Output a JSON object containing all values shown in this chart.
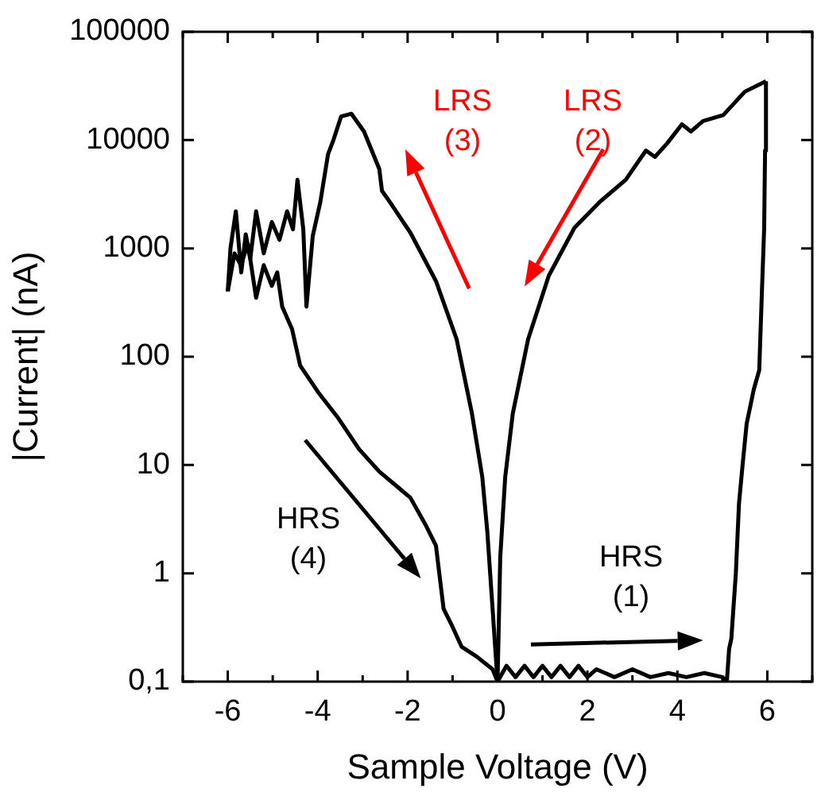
{
  "chart_data": {
    "type": "line",
    "xlabel": "Sample Voltage (V)",
    "ylabel": "|Current| (nA)",
    "log": "y",
    "xlim": [
      -7,
      7
    ],
    "ylim": [
      0.1,
      100000
    ],
    "xticks": [
      {
        "value": -7,
        "label": null
      },
      -6,
      {
        "value": -5,
        "label": null
      },
      -4,
      {
        "value": -3,
        "label": null
      },
      -2,
      {
        "value": -1,
        "label": null
      },
      0,
      {
        "value": 1,
        "label": null
      },
      2,
      {
        "value": 3,
        "label": null
      },
      4,
      {
        "value": 5,
        "label": null
      },
      6,
      {
        "value": 7,
        "label": null
      }
    ],
    "yticks": [
      {
        "value": 0.1,
        "label": "0,1"
      },
      1,
      10,
      100,
      1000,
      10000,
      100000
    ],
    "marker": "none",
    "annotations": [
      "LRS\n(3)",
      "LRS\n(2)",
      "HRS\n(4)",
      "HRS\n(1)"
    ],
    "series": [
      {
        "color": "#000000",
        "x": [
          0,
          0.2,
          0.4,
          0.6,
          0.8,
          1.0,
          1.2,
          1.4,
          1.6,
          1.8,
          2.0,
          2.2,
          2.6,
          3.0,
          3.4,
          3.8,
          4.2,
          4.6,
          5.0,
          5.1,
          5.15,
          5.2,
          5.3,
          5.37,
          5.45,
          5.54,
          5.7,
          5.82,
          5.88,
          5.93,
          5.95,
          5.97
        ],
        "values": [
          0.1,
          0.14,
          0.11,
          0.14,
          0.11,
          0.14,
          0.11,
          0.14,
          0.11,
          0.14,
          0.11,
          0.13,
          0.11,
          0.13,
          0.11,
          0.12,
          0.11,
          0.12,
          0.11,
          0.1,
          0.2,
          0.25,
          1,
          4.4,
          10,
          24,
          50,
          75,
          400,
          1550,
          8000,
          35000
        ]
      },
      {
        "color": "#000000",
        "x": [
          0,
          0.06,
          0.17,
          0.34,
          0.68,
          1.14,
          1.71,
          2.28,
          2.85,
          3.3,
          3.5,
          3.77,
          4.1,
          4.3,
          4.57,
          5.02,
          5.5,
          5.97
        ],
        "values": [
          0.1,
          1.4,
          7.7,
          30,
          145,
          560,
          1550,
          2700,
          4300,
          8000,
          7000,
          9300,
          14000,
          12000,
          15000,
          17000,
          28000,
          35000
        ]
      },
      {
        "color": "#000000",
        "x": [
          -6.0,
          -5.94,
          -5.82,
          -5.7,
          -5.6,
          -5.5,
          -5.37,
          -5.2,
          -5.02,
          -4.85,
          -4.68,
          -4.55,
          -4.45,
          -4.32,
          -4.25,
          -4.22,
          -4.11,
          -3.94,
          -3.77,
          -3.65,
          -3.48,
          -3.25,
          -2.97,
          -2.63,
          -2.57,
          -2.4,
          -1.94,
          -1.37,
          -0.91,
          -0.57,
          -0.34,
          -0.23,
          -0.11,
          -0.05,
          0
        ],
        "values": [
          400,
          1000,
          2200,
          600,
          1350,
          800,
          2200,
          900,
          1750,
          1200,
          2200,
          1500,
          4300,
          1500,
          290,
          400,
          1300,
          2700,
          7400,
          10000,
          16500,
          17500,
          12000,
          5400,
          3400,
          2700,
          1400,
          500,
          145,
          30,
          7.8,
          2.5,
          0.47,
          0.2,
          0.1
        ]
      },
      {
        "color": "#000000",
        "x": [
          -6.0,
          -5.85,
          -5.71,
          -5.55,
          -5.37,
          -5.2,
          -5.02,
          -4.9,
          -4.79,
          -4.57,
          -4.39,
          -3.99,
          -3.54,
          -3.08,
          -2.63,
          -1.94,
          -1.6,
          -1.37,
          -1.2,
          -1.03,
          -0.8,
          -0.46,
          -0.11,
          0
        ],
        "values": [
          400,
          900,
          700,
          1100,
          350,
          700,
          450,
          600,
          290,
          180,
          83,
          47,
          27,
          14,
          8.7,
          5,
          2.8,
          1.8,
          0.47,
          0.34,
          0.21,
          0.17,
          0.13,
          0.1
        ]
      }
    ]
  }
}
